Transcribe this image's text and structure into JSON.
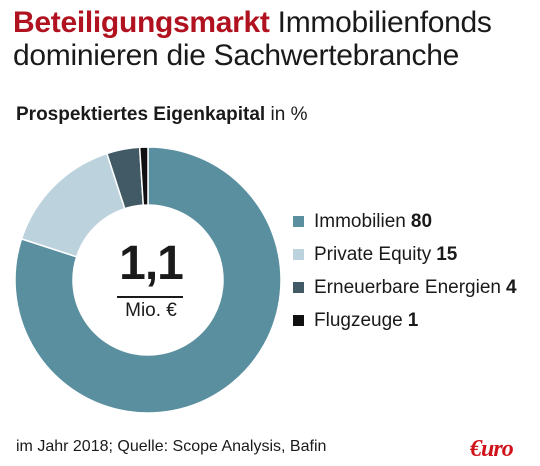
{
  "header": {
    "kicker": "Beteiligungsmarkt",
    "title": "Immobilienfonds dominieren die Sachwertebranche"
  },
  "subtitle": {
    "label": "Prospektiertes Eigenkapital",
    "unit": "in %"
  },
  "center": {
    "value": "1,1",
    "unit": "Mio. €"
  },
  "chart_data": {
    "type": "pie",
    "style": "donut",
    "categories": [
      "Immobilien",
      "Private Equity",
      "Erneuerbare Energien",
      "Flugzeuge"
    ],
    "values": [
      80,
      15,
      4,
      1
    ],
    "colors": [
      "#5a8fa0",
      "#bcd3de",
      "#425a66",
      "#111111"
    ],
    "unit": "%"
  },
  "footer": {
    "source": "im Jahr 2018; Quelle: Scope Analysis, Bafin"
  },
  "logo": {
    "text": "€uro"
  }
}
